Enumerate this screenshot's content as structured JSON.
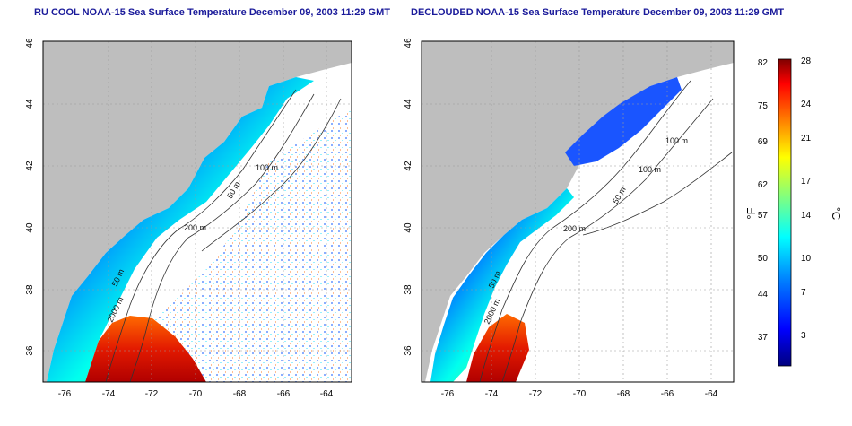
{
  "left_map": {
    "title": "RU COOL NOAA-15 Sea Surface Temperature December 09, 2003 11:29 GMT",
    "x_ticks": [
      "-76",
      "-74",
      "-72",
      "-70",
      "-68",
      "-66",
      "-64"
    ],
    "y_ticks": [
      "46",
      "44",
      "42",
      "40",
      "38",
      "36"
    ],
    "contour_labels": [
      "100 m",
      "50 m",
      "200 m",
      "50 m",
      "2000 m"
    ]
  },
  "right_map": {
    "title": "DECLOUDED NOAA-15 Sea Surface Temperature December 09, 2003 11:29 GMT",
    "x_ticks": [
      "-76",
      "-74",
      "-72",
      "-70",
      "-68",
      "-66",
      "-64"
    ],
    "y_ticks": [
      "46",
      "44",
      "42",
      "40",
      "38",
      "36"
    ],
    "contour_labels": [
      "100 m",
      "100 m",
      "50 m",
      "200 m",
      "50 m",
      "2000 m"
    ]
  },
  "colorbar": {
    "fahrenheit_label": "°F",
    "celsius_label": "°C",
    "fahrenheit_ticks": [
      "82",
      "75",
      "69",
      "62",
      "57",
      "50",
      "44",
      "37"
    ],
    "celsius_ticks": [
      "28",
      "24",
      "21",
      "17",
      "14",
      "10",
      "7",
      "3"
    ],
    "colors": [
      "#00007f",
      "#0000ff",
      "#0080ff",
      "#00ffff",
      "#80ff80",
      "#ffff00",
      "#ff8000",
      "#ff0000",
      "#7f0000"
    ]
  }
}
